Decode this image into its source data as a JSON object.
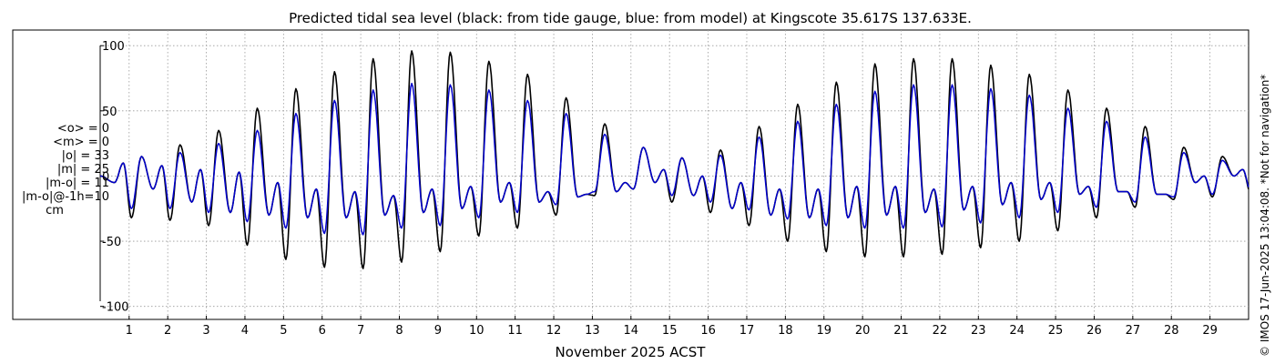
{
  "chart_data": {
    "type": "line",
    "title": "Predicted tidal sea level (black: from tide gauge, blue: from model) at Kingscote 35.617S 137.633E.",
    "xlabel": "November 2025 ACST",
    "ylabel": "cm",
    "xlim": [
      0.25,
      30.0
    ],
    "ylim": [
      -110,
      112
    ],
    "yticks": [
      100,
      50,
      0,
      -50,
      -100
    ],
    "ytick_labels": [
      "100",
      "50",
      "0",
      "-50",
      "-100"
    ],
    "xticks": [
      1,
      2,
      3,
      4,
      5,
      6,
      7,
      8,
      9,
      10,
      11,
      12,
      13,
      14,
      15,
      16,
      17,
      18,
      19,
      20,
      21,
      22,
      23,
      24,
      25,
      26,
      27,
      28,
      29
    ],
    "xtick_labels": [
      "1",
      "2",
      "3",
      "4",
      "5",
      "6",
      "7",
      "8",
      "9",
      "10",
      "11",
      "12",
      "13",
      "14",
      "15",
      "16",
      "17",
      "18",
      "19",
      "20",
      "21",
      "22",
      "23",
      "24",
      "25",
      "26",
      "27",
      "28",
      "29"
    ],
    "grid": true,
    "series": [
      {
        "name": "from tide gauge",
        "color": "#000000",
        "daily_high_peak": [
          15,
          24,
          35,
          52,
          67,
          80,
          90,
          96,
          95,
          88,
          78,
          60,
          40,
          22,
          14,
          20,
          38,
          55,
          72,
          86,
          90,
          90,
          85,
          78,
          66,
          52,
          38,
          22,
          15,
          10
        ],
        "daily_low_trough": [
          -32,
          -34,
          -38,
          -53,
          -64,
          -70,
          -71,
          -66,
          -58,
          -46,
          -40,
          -30,
          -15,
          -10,
          -20,
          -28,
          -38,
          -50,
          -58,
          -62,
          -62,
          -60,
          -55,
          -50,
          -42,
          -32,
          -24,
          -18,
          -16,
          -14
        ],
        "daily_lesser_peak": [
          10,
          8,
          5,
          3,
          -5,
          -10,
          -12,
          -15,
          -10,
          -8,
          -5,
          -12,
          -14,
          -5,
          5,
          0,
          -5,
          -10,
          -10,
          -8,
          -8,
          -10,
          -8,
          -5,
          -5,
          -8,
          -12,
          -14,
          0,
          5
        ],
        "daily_lesser_trough": [
          -5,
          -10,
          -20,
          -28,
          -30,
          -32,
          -32,
          -30,
          -28,
          -25,
          -20,
          -20,
          -16,
          -12,
          -5,
          -15,
          -25,
          -30,
          -32,
          -32,
          -30,
          -28,
          -26,
          -22,
          -18,
          -14,
          -12,
          -14,
          -5,
          0
        ]
      },
      {
        "name": "from model",
        "color": "#0000cc",
        "daily_high_peak": [
          15,
          18,
          25,
          35,
          48,
          58,
          66,
          71,
          70,
          66,
          58,
          48,
          32,
          22,
          14,
          16,
          30,
          42,
          55,
          65,
          70,
          70,
          67,
          62,
          52,
          42,
          30,
          18,
          12,
          10
        ],
        "daily_low_trough": [
          -25,
          -25,
          -28,
          -35,
          -40,
          -44,
          -45,
          -40,
          -38,
          -32,
          -28,
          -22,
          -12,
          -10,
          -15,
          -20,
          -26,
          -33,
          -38,
          -40,
          -40,
          -39,
          -36,
          -32,
          -28,
          -24,
          -20,
          -16,
          -14,
          -12
        ],
        "daily_lesser_peak": [
          10,
          8,
          5,
          3,
          -5,
          -10,
          -12,
          -15,
          -10,
          -8,
          -5,
          -12,
          -14,
          -5,
          5,
          0,
          -5,
          -10,
          -10,
          -8,
          -8,
          -10,
          -8,
          -5,
          -5,
          -8,
          -12,
          -14,
          0,
          5
        ],
        "daily_lesser_trough": [
          -5,
          -10,
          -20,
          -28,
          -30,
          -32,
          -32,
          -30,
          -28,
          -25,
          -20,
          -20,
          -16,
          -12,
          -5,
          -15,
          -25,
          -30,
          -32,
          -32,
          -30,
          -28,
          -26,
          -22,
          -18,
          -14,
          -12,
          -14,
          -5,
          0
        ]
      }
    ]
  },
  "stats": {
    "mean_obs": "<o> = 0",
    "mean_model": "<m> = 0",
    "abs_obs": "|o| = 33",
    "abs_model": "|m| = 25",
    "abs_diff": "|m-o| = 11",
    "abs_diff_lag": "|m-o|@-1h=10",
    "unit": "cm"
  },
  "copyright": "© IMOS 17-Jun-2025 13:04:08.  *Not for navigation*"
}
